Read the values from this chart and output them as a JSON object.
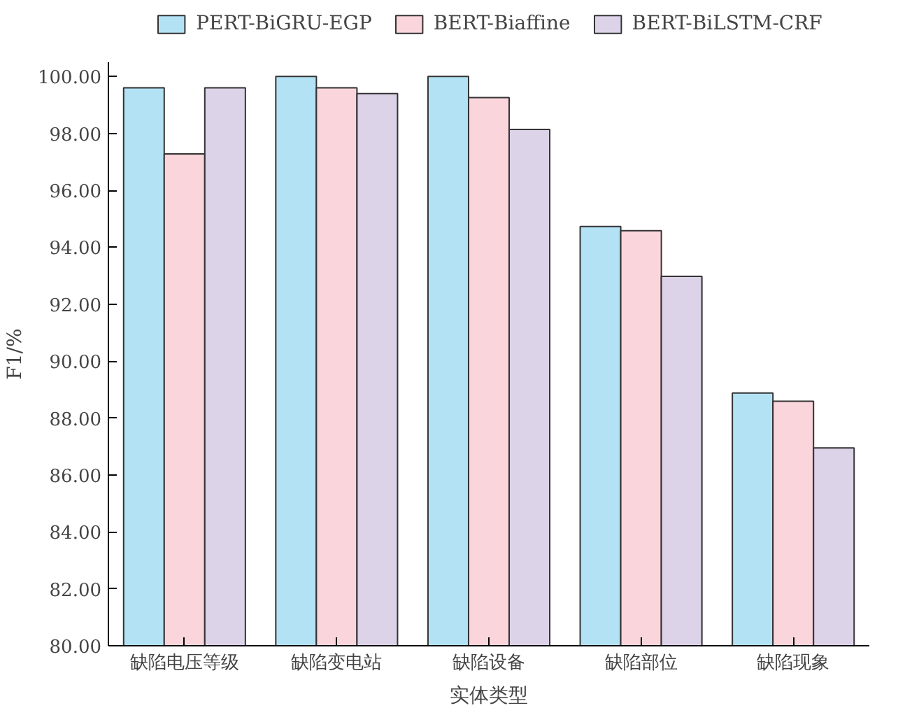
{
  "chart_data": {
    "type": "bar",
    "xlabel": "实体类型",
    "ylabel": "F1/%",
    "categories": [
      "缺陷电压等级",
      "缺陷变电站",
      "缺陷设备",
      "缺陷部位",
      "缺陷现象"
    ],
    "series": [
      {
        "name": "PERT-BiGRU-EGP",
        "color": "#b3e2f5",
        "values": [
          99.6,
          100.0,
          100.0,
          94.73,
          88.88
        ]
      },
      {
        "name": "BERT-Biaffine",
        "color": "#fad6dc",
        "values": [
          97.28,
          99.6,
          99.26,
          94.58,
          88.59
        ]
      },
      {
        "name": "BERT-BiLSTM-CRF",
        "color": "#ddd3e8",
        "values": [
          99.6,
          99.4,
          98.14,
          92.98,
          86.95
        ]
      }
    ],
    "ylim": [
      80,
      100.5
    ],
    "yticks": [
      {
        "value": 80,
        "label": "80.00"
      },
      {
        "value": 82,
        "label": "82.00"
      },
      {
        "value": 84,
        "label": "84.00"
      },
      {
        "value": 86,
        "label": "86.00"
      },
      {
        "value": 88,
        "label": "88.00"
      },
      {
        "value": 90,
        "label": "90.00"
      },
      {
        "value": 92,
        "label": "92.00"
      },
      {
        "value": 94,
        "label": "94.00"
      },
      {
        "value": 96,
        "label": "96.00"
      },
      {
        "value": 98,
        "label": "98.00"
      },
      {
        "value": 100,
        "label": "100.00"
      }
    ],
    "legend": "top",
    "grid": false
  }
}
